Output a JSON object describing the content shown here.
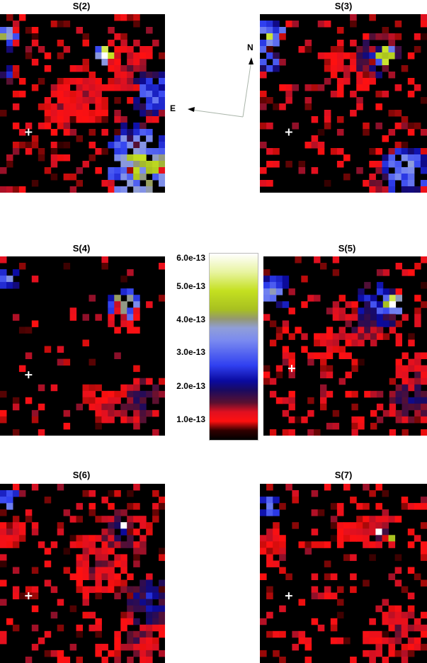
{
  "chart_data": {
    "type": "heatmap",
    "grid": {
      "cols": 26,
      "rows": 28
    },
    "value_unit_scale": 1e-13,
    "colorbar": {
      "range": [
        0,
        6.0
      ],
      "ticks": [
        {
          "value": 1.0,
          "label": "1.0e-13"
        },
        {
          "value": 2.0,
          "label": "2.0e-13"
        },
        {
          "value": 3.0,
          "label": "3.0e-13"
        },
        {
          "value": 4.0,
          "label": "4.0e-13"
        },
        {
          "value": 5.0,
          "label": "5.0e-13"
        },
        {
          "value": 6.0,
          "label": "6.0e-13"
        }
      ],
      "stops": [
        [
          0.0,
          "#000000"
        ],
        [
          0.3,
          "#300000"
        ],
        [
          0.6,
          "#ff1010"
        ],
        [
          0.9,
          "#e01020"
        ],
        [
          1.2,
          "#5a1030"
        ],
        [
          1.6,
          "#1a0a60"
        ],
        [
          1.9,
          "#0a0aa0"
        ],
        [
          2.4,
          "#3040f0"
        ],
        [
          3.2,
          "#7a8af0"
        ],
        [
          3.6,
          "#909ed8"
        ],
        [
          3.9,
          "#949870"
        ],
        [
          4.2,
          "#a8c020"
        ],
        [
          4.8,
          "#c4e020"
        ],
        [
          5.4,
          "#e8f4a0"
        ],
        [
          6.0,
          "#ffffff"
        ]
      ]
    },
    "panels": [
      {
        "title": "S(2)",
        "seed": 2,
        "cross": [
          4,
          18
        ],
        "noise": 0.22,
        "blobs": [
          [
            22,
            23,
            6,
            4.6
          ],
          [
            24,
            12,
            4,
            3.0
          ],
          [
            20,
            8,
            4,
            1.2
          ],
          [
            13,
            12,
            5,
            1.0
          ],
          [
            16,
            6,
            1.5,
            6.0
          ],
          [
            0.5,
            3,
            2.5,
            3.8
          ],
          [
            0.5,
            9,
            1.5,
            2.5
          ],
          [
            9,
            14,
            3,
            1.0
          ],
          [
            20,
            18,
            3,
            2.2
          ]
        ]
      },
      {
        "title": "S(3)",
        "seed": 3,
        "cross": [
          4,
          18
        ],
        "noise": 0.18,
        "blobs": [
          [
            1,
            3,
            2.5,
            4.2
          ],
          [
            1,
            7,
            2,
            3.0
          ],
          [
            18,
            6,
            4,
            2.2
          ],
          [
            19,
            6,
            1.5,
            6.0
          ],
          [
            13,
            8,
            4,
            1.0
          ],
          [
            22,
            24,
            4,
            3.6
          ],
          [
            18,
            25,
            3,
            1.4
          ],
          [
            8,
            20,
            2,
            1.0
          ]
        ]
      },
      {
        "title": "S(4)",
        "seed": 4,
        "cross": [
          4,
          18
        ],
        "noise": 0.08,
        "blobs": [
          [
            19,
            7,
            2.5,
            4.5
          ],
          [
            19,
            9,
            3,
            1.2
          ],
          [
            1,
            3,
            2,
            3.0
          ],
          [
            22,
            22,
            4,
            1.6
          ],
          [
            17,
            23,
            3,
            1.1
          ],
          [
            14,
            21,
            1.5,
            1.0
          ]
        ]
      },
      {
        "title": "S(5)",
        "seed": 5,
        "cross": [
          4,
          17
        ],
        "noise": 0.2,
        "blobs": [
          [
            1,
            5,
            3,
            3.6
          ],
          [
            18,
            7,
            4,
            2.6
          ],
          [
            20,
            7,
            1.5,
            6.0
          ],
          [
            15,
            10,
            4,
            1.4
          ],
          [
            24,
            18,
            4,
            1.1
          ],
          [
            23,
            22,
            4,
            1.8
          ],
          [
            10,
            13,
            3,
            1.0
          ],
          [
            3,
            16,
            2,
            1.0
          ]
        ]
      },
      {
        "title": "S(6)",
        "seed": 6,
        "cross": [
          4,
          17
        ],
        "noise": 0.22,
        "blobs": [
          [
            0.5,
            2,
            2,
            3.8
          ],
          [
            1,
            7,
            2.5,
            1.0
          ],
          [
            19,
            7,
            4,
            1.6
          ],
          [
            19,
            6,
            1,
            6.0
          ],
          [
            15,
            12,
            5,
            1.2
          ],
          [
            23,
            18,
            4,
            2.2
          ],
          [
            21,
            24,
            4,
            1.3
          ]
        ]
      },
      {
        "title": "S(7)",
        "seed": 7,
        "cross": [
          4,
          17
        ],
        "noise": 0.16,
        "blobs": [
          [
            1,
            3,
            2,
            3.2
          ],
          [
            1,
            8,
            2.5,
            1.0
          ],
          [
            18,
            7,
            3,
            1.4
          ],
          [
            18,
            7,
            1,
            6.0
          ],
          [
            20,
            8,
            1,
            4.2
          ],
          [
            14,
            7,
            3,
            1.0
          ],
          [
            22,
            22,
            4,
            1.2
          ],
          [
            18,
            25,
            3,
            1.0
          ]
        ]
      }
    ],
    "compass": {
      "north": "N",
      "east": "E"
    }
  }
}
